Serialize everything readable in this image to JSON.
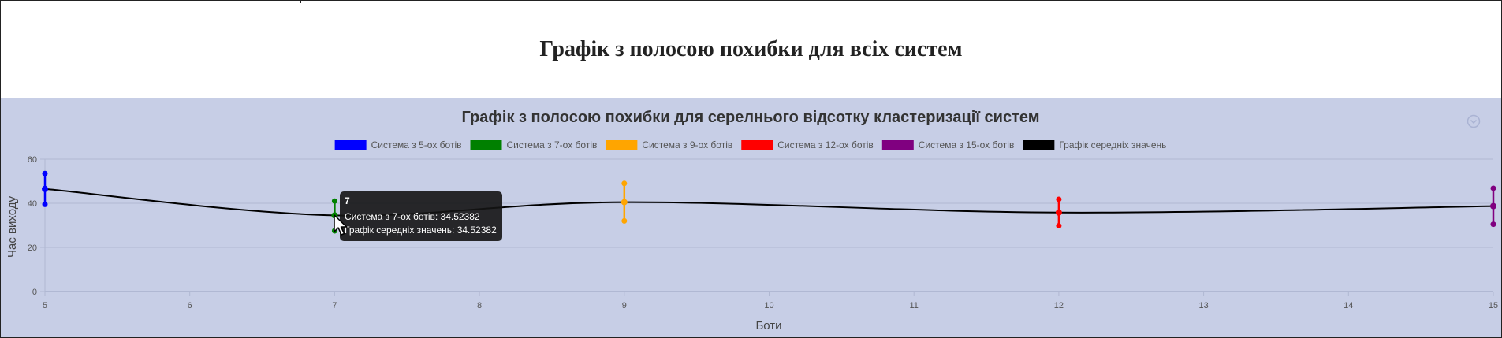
{
  "page": {
    "title": "Графік з полосою похибки для всіх систем"
  },
  "chart_data": {
    "type": "line",
    "title": "Графік з полосою похибки для серелнього відсотку кластеризації систем",
    "xlabel": "Боти",
    "ylabel": "Час виходу",
    "xlim": [
      5,
      15
    ],
    "ylim": [
      0,
      60
    ],
    "x_ticks": [
      "5",
      "6",
      "7",
      "8",
      "9",
      "10",
      "11",
      "12",
      "13",
      "14",
      "15"
    ],
    "y_ticks": [
      "0",
      "20",
      "40",
      "60"
    ],
    "grid": true,
    "legend_position": "top",
    "series": [
      {
        "name": "Система з 5-ох ботів",
        "color": "#0000ff",
        "x": 5,
        "y": 46.5,
        "low": 39.5,
        "high": 53.5
      },
      {
        "name": "Система з 7-ох ботів",
        "color": "#008000",
        "x": 7,
        "y": 34.52382,
        "low": 27.5,
        "high": 41
      },
      {
        "name": "Система з 9-ох ботів",
        "color": "#ffa500",
        "x": 9,
        "y": 40.5,
        "low": 32,
        "high": 49
      },
      {
        "name": "Система з 12-ох ботів",
        "color": "#ff0000",
        "x": 12,
        "y": 35.8,
        "low": 29.8,
        "high": 41.8
      },
      {
        "name": "Система з 15-ох ботів",
        "color": "#800080",
        "x": 15,
        "y": 38.7,
        "low": 30.5,
        "high": 46.8
      },
      {
        "name": "Графік середніх значень",
        "color": "#000000",
        "x": [
          5,
          7,
          9,
          12,
          15
        ],
        "y": [
          46.5,
          34.52382,
          40.5,
          35.8,
          38.7
        ]
      }
    ],
    "tooltip": {
      "title": "7",
      "lines": [
        "Система з 7-ох ботів: 34.52382",
        "Графік середніх значень: 34.52382"
      ]
    }
  },
  "icons": {
    "cursor": "cursor-icon",
    "menu": "chart-menu-icon"
  }
}
